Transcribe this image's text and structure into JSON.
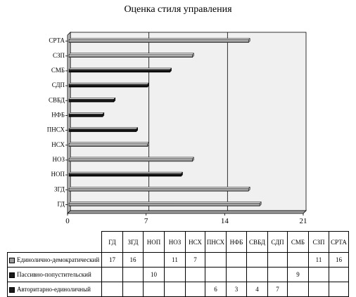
{
  "chart_data": {
    "type": "bar",
    "orientation": "horizontal",
    "title": "Оценка стиля управления",
    "xlim": [
      0,
      21
    ],
    "xticks": [
      "0",
      "7",
      "14",
      "21"
    ],
    "categories": [
      "ГД",
      "ЗГД",
      "НОП",
      "НОЗ",
      "НСХ",
      "ПНСХ",
      "НФБ",
      "СВБД",
      "СДП",
      "СМБ",
      "СЗП",
      "СРТА"
    ],
    "series": [
      {
        "name": "Единолично-демократический",
        "color": "#9a9a9a",
        "values": [
          17,
          16,
          null,
          11,
          7,
          null,
          null,
          null,
          null,
          null,
          11,
          16
        ]
      },
      {
        "name": "Пассивно-попустительский",
        "color": "#1a1a1a",
        "values": [
          null,
          null,
          10,
          null,
          null,
          null,
          null,
          null,
          null,
          9,
          null,
          null
        ]
      },
      {
        "name": "Авторитарно-единоличный",
        "color": "#1a1a1a",
        "values": [
          null,
          null,
          null,
          null,
          null,
          6,
          3,
          4,
          7,
          null,
          null,
          null
        ]
      }
    ],
    "grid": true,
    "legend": "table"
  }
}
